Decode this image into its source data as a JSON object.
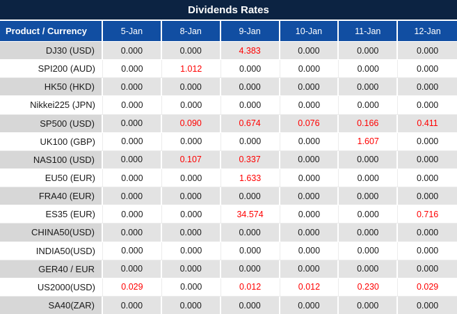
{
  "title": "Dividends Rates",
  "colors": {
    "title_bar_bg": "#0c2342",
    "header_bg": "#114ea2",
    "header_text": "#ffffff",
    "gray_row_label_bg": "#d7d7d7",
    "gray_row_cell_bg": "#e3e3e3",
    "white_row_bg": "#ffffff",
    "value_text": "#1a1a1a",
    "highlight_value_text": "#ff0000",
    "grid_border": "#ffffff"
  },
  "table": {
    "columns": [
      "Product / Currency",
      "5-Jan",
      "8-Jan",
      "9-Jan",
      "10-Jan",
      "11-Jan",
      "12-Jan"
    ],
    "rows": [
      {
        "label": "DJ30 (USD)",
        "values": [
          "0.000",
          "0.000",
          "4.383",
          "0.000",
          "0.000",
          "0.000"
        ],
        "red_columns": [
          2
        ]
      },
      {
        "label": "SPI200 (AUD)",
        "values": [
          "0.000",
          "1.012",
          "0.000",
          "0.000",
          "0.000",
          "0.000"
        ],
        "red_columns": [
          1
        ]
      },
      {
        "label": "HK50 (HKD)",
        "values": [
          "0.000",
          "0.000",
          "0.000",
          "0.000",
          "0.000",
          "0.000"
        ],
        "red_columns": []
      },
      {
        "label": "Nikkei225 (JPN)",
        "values": [
          "0.000",
          "0.000",
          "0.000",
          "0.000",
          "0.000",
          "0.000"
        ],
        "red_columns": []
      },
      {
        "label": "SP500 (USD)",
        "values": [
          "0.000",
          "0.090",
          "0.674",
          "0.076",
          "0.166",
          "0.411"
        ],
        "red_columns": [
          1,
          2,
          3,
          4,
          5
        ]
      },
      {
        "label": "UK100 (GBP)",
        "values": [
          "0.000",
          "0.000",
          "0.000",
          "0.000",
          "1.607",
          "0.000"
        ],
        "red_columns": [
          4
        ]
      },
      {
        "label": "NAS100 (USD)",
        "values": [
          "0.000",
          "0.107",
          "0.337",
          "0.000",
          "0.000",
          "0.000"
        ],
        "red_columns": [
          1,
          2
        ]
      },
      {
        "label": "EU50 (EUR)",
        "values": [
          "0.000",
          "0.000",
          "1.633",
          "0.000",
          "0.000",
          "0.000"
        ],
        "red_columns": [
          2
        ]
      },
      {
        "label": "FRA40 (EUR)",
        "values": [
          "0.000",
          "0.000",
          "0.000",
          "0.000",
          "0.000",
          "0.000"
        ],
        "red_columns": []
      },
      {
        "label": "ES35 (EUR)",
        "values": [
          "0.000",
          "0.000",
          "34.574",
          "0.000",
          "0.000",
          "0.716"
        ],
        "red_columns": [
          2,
          5
        ]
      },
      {
        "label": "CHINA50(USD)",
        "values": [
          "0.000",
          "0.000",
          "0.000",
          "0.000",
          "0.000",
          "0.000"
        ],
        "red_columns": []
      },
      {
        "label": "INDIA50(USD)",
        "values": [
          "0.000",
          "0.000",
          "0.000",
          "0.000",
          "0.000",
          "0.000"
        ],
        "red_columns": []
      },
      {
        "label": "GER40 / EUR",
        "values": [
          "0.000",
          "0.000",
          "0.000",
          "0.000",
          "0.000",
          "0.000"
        ],
        "red_columns": []
      },
      {
        "label": "US2000(USD)",
        "values": [
          "0.029",
          "0.000",
          "0.012",
          "0.012",
          "0.230",
          "0.029"
        ],
        "red_columns": [
          0,
          2,
          3,
          4,
          5
        ]
      },
      {
        "label": "SA40(ZAR)",
        "values": [
          "0.000",
          "0.000",
          "0.000",
          "0.000",
          "0.000",
          "0.000"
        ],
        "red_columns": []
      }
    ]
  }
}
